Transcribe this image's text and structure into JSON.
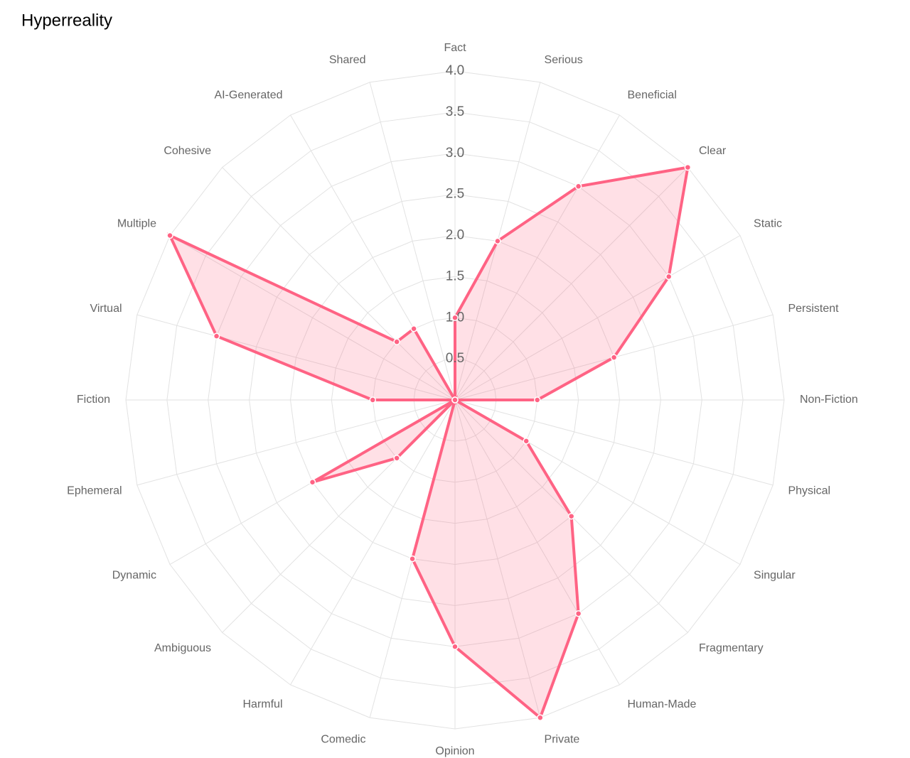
{
  "chart_data": {
    "type": "radar",
    "title": "Hyperreality",
    "categories": [
      "Fact",
      "Serious",
      "Beneficial",
      "Clear",
      "Static",
      "Persistent",
      "Non-Fiction",
      "Physical",
      "Singular",
      "Fragmentary",
      "Human-Made",
      "Private",
      "Opinion",
      "Comedic",
      "Harmful",
      "Ambiguous",
      "Dynamic",
      "Ephemeral",
      "Fiction",
      "Virtual",
      "Multiple",
      "Cohesive",
      "AI-Generated",
      "Shared"
    ],
    "values": [
      1,
      2,
      3,
      4,
      3,
      2,
      1,
      0,
      1,
      2,
      3,
      4,
      3,
      2,
      0,
      1,
      2,
      0,
      1,
      3,
      4,
      1,
      1,
      0
    ],
    "color": "#ff6384",
    "ylim": [
      0,
      4
    ],
    "yticks": [
      0.5,
      {
        "value": 1,
        "label": "1.0"
      },
      1.5,
      {
        "value": 2,
        "label": "2.0"
      },
      2.5,
      {
        "value": 3,
        "label": "3.0"
      },
      3.5,
      {
        "value": 4,
        "label": "4.0"
      }
    ],
    "grid": true
  }
}
